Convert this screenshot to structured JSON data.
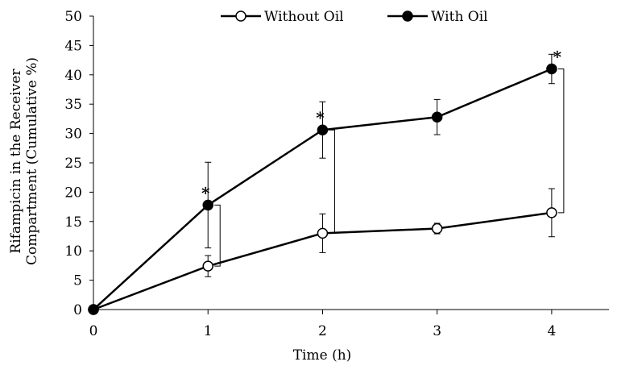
{
  "chart_data": {
    "type": "line",
    "xlabel": "Time (h)",
    "ylabel_line1": "Rifampicin in the Receiver",
    "ylabel_line2": "Compartment (Cumulative %)",
    "xlim": [
      0,
      4.5
    ],
    "ylim": [
      0,
      50
    ],
    "x_ticks": [
      "0",
      "1",
      "2",
      "3",
      "4"
    ],
    "y_ticks": [
      "0",
      "5",
      "10",
      "15",
      "20",
      "25",
      "30",
      "35",
      "40",
      "45",
      "50"
    ],
    "grid": false,
    "legend_position": "top",
    "significance_marker": "*",
    "significant_at": [
      1,
      2,
      4
    ],
    "series": [
      {
        "name": "Without Oil",
        "marker": "open-circle",
        "x": [
          0,
          1,
          2,
          3,
          4
        ],
        "y": [
          0,
          7.4,
          13.0,
          13.8,
          16.5
        ],
        "error": [
          0,
          1.8,
          3.3,
          0.9,
          4.1
        ]
      },
      {
        "name": "With Oil",
        "marker": "filled-circle",
        "x": [
          0,
          1,
          2,
          3,
          4
        ],
        "y": [
          0,
          17.8,
          30.6,
          32.8,
          41.0
        ],
        "error": [
          0,
          7.3,
          4.8,
          3.0,
          2.5
        ]
      }
    ],
    "colors": {
      "line": "#000000",
      "background": "#ffffff"
    }
  }
}
